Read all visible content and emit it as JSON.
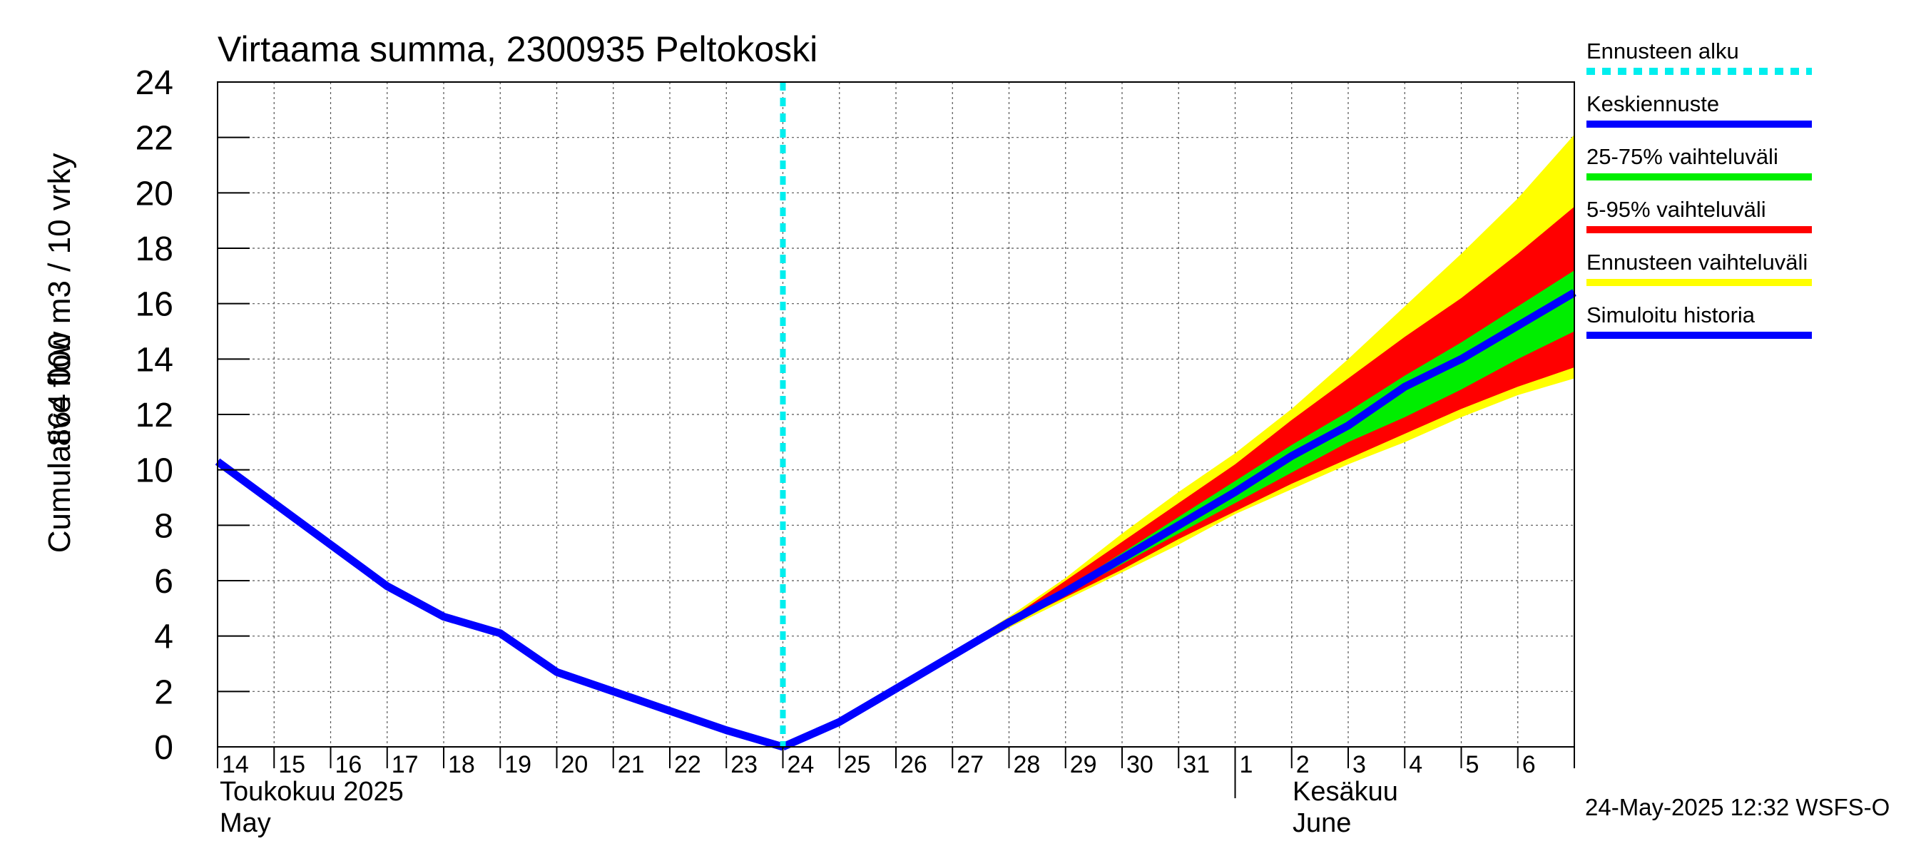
{
  "chart_data": {
    "type": "area",
    "title": "Virtaama summa, 2300935 Peltokoski",
    "ylabel_line1": "Cumulative flow",
    "ylabel_line2": "864 000 m3 / 10 vrky",
    "ylim": [
      0,
      24
    ],
    "y_ticks": [
      0,
      2,
      4,
      6,
      8,
      10,
      12,
      14,
      16,
      18,
      20,
      22,
      24
    ],
    "grid": true,
    "legend_position": "right",
    "x_days": [
      "14",
      "15",
      "16",
      "17",
      "18",
      "19",
      "20",
      "21",
      "22",
      "23",
      "24",
      "25",
      "26",
      "27",
      "28",
      "29",
      "30",
      "31",
      "1",
      "2",
      "3",
      "4",
      "5",
      "6"
    ],
    "month_labels": {
      "may_fi": "Toukokuu  2025",
      "may_en": "May",
      "june_fi": "Kesäkuu",
      "june_en": "June"
    },
    "forecast_start_index": 10,
    "series": [
      {
        "name": "Simuloitu historia",
        "color": "#0000ff",
        "x": [
          0,
          1,
          2,
          3,
          4,
          5,
          6,
          7,
          8,
          9,
          10
        ],
        "values": [
          10.3,
          8.8,
          7.3,
          5.8,
          4.7,
          4.1,
          2.7,
          2.0,
          1.3,
          0.6,
          0.0
        ]
      },
      {
        "name": "Keskiennuste",
        "color": "#0000ff",
        "x": [
          10,
          11,
          12,
          13,
          14,
          15,
          16,
          17,
          18,
          19,
          20,
          21,
          22,
          23,
          24
        ],
        "values": [
          0.0,
          0.9,
          2.1,
          3.3,
          4.5,
          5.6,
          6.8,
          8.0,
          9.2,
          10.5,
          11.6,
          13.0,
          14.0,
          15.2,
          16.4
        ]
      }
    ],
    "bands": [
      {
        "name": "Ennusteen vaihteluväli",
        "color": "#ffff00",
        "x": [
          12,
          13,
          14,
          15,
          16,
          17,
          18,
          19,
          20,
          21,
          22,
          23,
          24
        ],
        "upper": [
          2.1,
          3.4,
          4.7,
          6.1,
          7.7,
          9.2,
          10.6,
          12.2,
          14.0,
          15.9,
          17.8,
          19.8,
          22.1
        ],
        "lower": [
          2.1,
          3.2,
          4.3,
          5.3,
          6.3,
          7.3,
          8.4,
          9.3,
          10.2,
          11.0,
          11.9,
          12.7,
          13.3
        ]
      },
      {
        "name": "5-95% vaihteluväli",
        "color": "#ff0000",
        "x": [
          12,
          13,
          14,
          15,
          16,
          17,
          18,
          19,
          20,
          21,
          22,
          23,
          24
        ],
        "upper": [
          2.1,
          3.4,
          4.6,
          6.0,
          7.4,
          8.8,
          10.2,
          11.8,
          13.3,
          14.8,
          16.2,
          17.8,
          19.5
        ],
        "lower": [
          2.1,
          3.2,
          4.4,
          5.4,
          6.4,
          7.5,
          8.5,
          9.5,
          10.4,
          11.3,
          12.2,
          13.0,
          13.7
        ]
      },
      {
        "name": "25-75% vaihteluväli",
        "color": "#00ee00",
        "x": [
          14,
          15,
          16,
          17,
          18,
          19,
          20,
          21,
          22,
          23,
          24
        ],
        "upper": [
          4.5,
          5.7,
          7.0,
          8.3,
          9.6,
          10.9,
          12.1,
          13.4,
          14.6,
          15.9,
          17.2
        ],
        "lower": [
          4.4,
          5.5,
          6.6,
          7.7,
          8.8,
          9.9,
          11.0,
          11.9,
          12.9,
          14.0,
          15.0
        ]
      }
    ]
  },
  "legend": [
    {
      "label": "Ennusteen alku",
      "color": "#00eeee",
      "style": "dashed"
    },
    {
      "label": "Keskiennuste",
      "color": "#0000ff",
      "style": "solid"
    },
    {
      "label": "25-75% vaihteluväli",
      "color": "#00ee00",
      "style": "solid"
    },
    {
      "label": "5-95% vaihteluväli",
      "color": "#ff0000",
      "style": "solid"
    },
    {
      "label": "Ennusteen vaihteluväli",
      "color": "#ffff00",
      "style": "solid"
    },
    {
      "label": "Simuloitu historia",
      "color": "#0000ff",
      "style": "solid"
    }
  ],
  "footer": {
    "timestamp": "24-May-2025 12:32 WSFS-O"
  }
}
